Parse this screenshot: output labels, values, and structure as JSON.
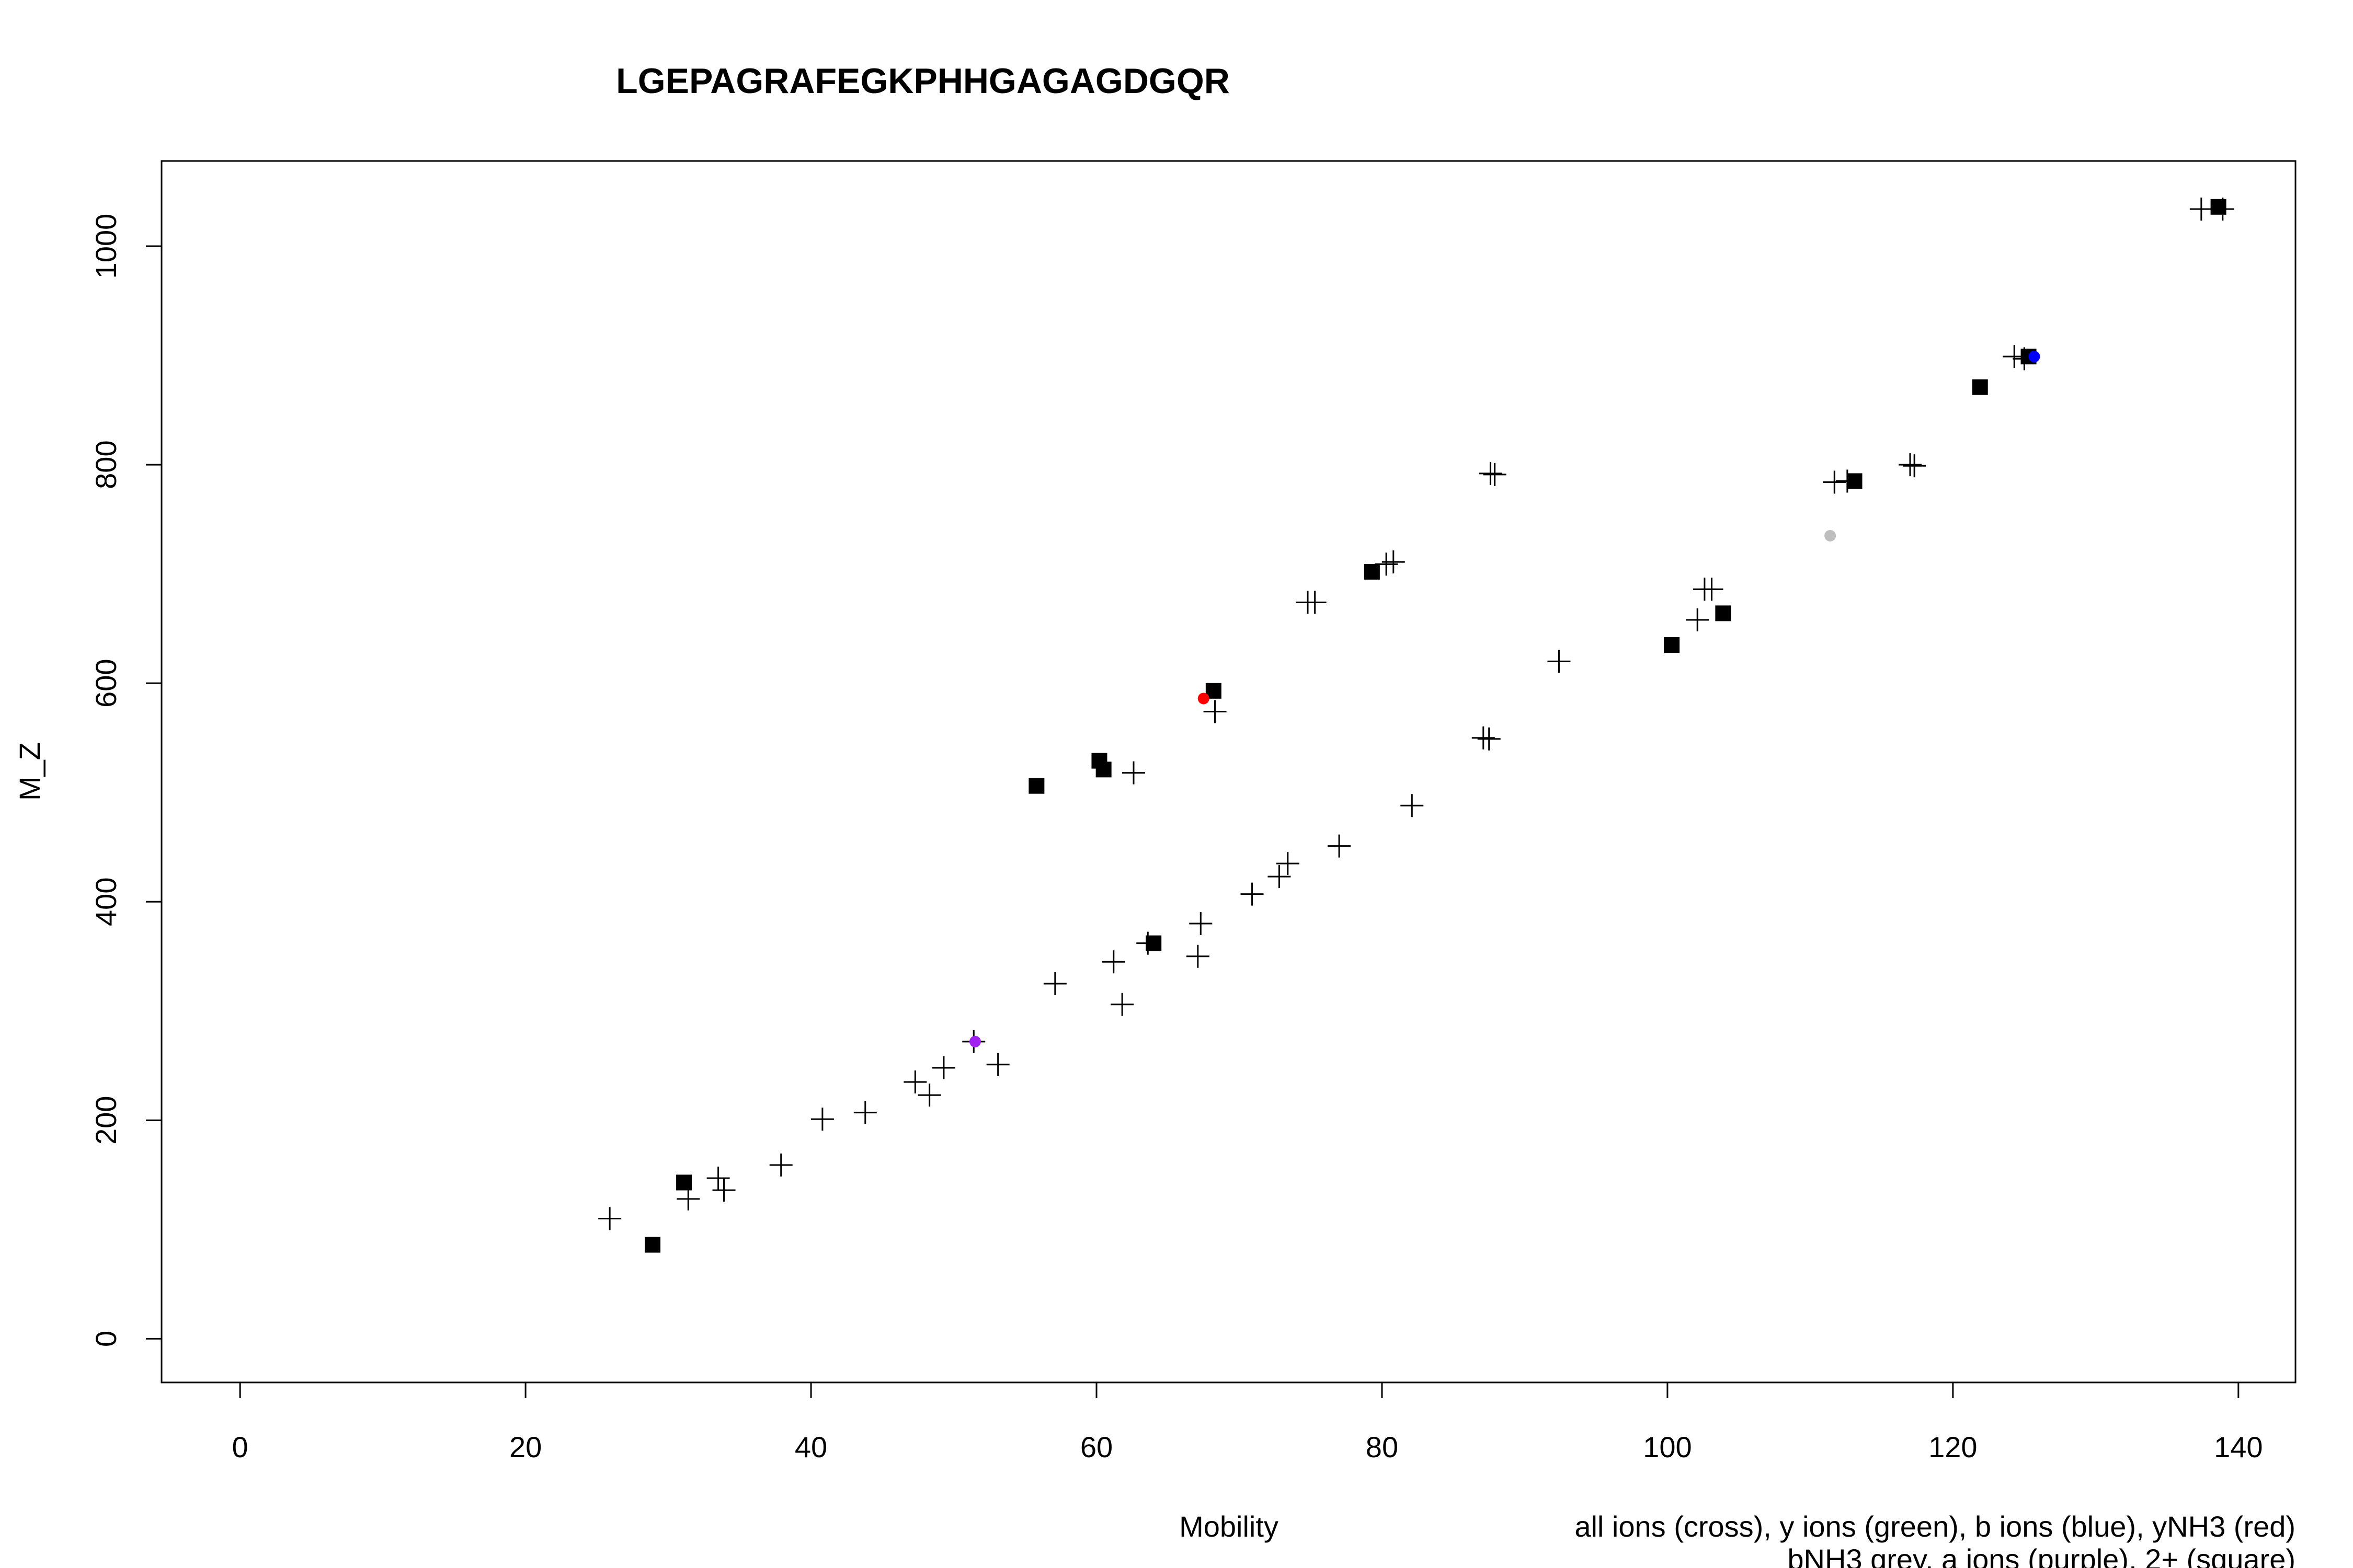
{
  "chart_data": {
    "type": "scatter",
    "title": "LGEPAGRAFEGKPHHGAGAGDGQR",
    "xlabel": "Mobility",
    "ylabel": "M_Z",
    "legend_line1": "all ions (cross), y ions (green), b ions (blue), yNH3 (red)",
    "legend_line2": "bNH3 grey, a ions (purple), 2+ (square)",
    "xlim": [
      -5.5,
      144
    ],
    "ylim": [
      -40,
      1078
    ],
    "x_ticks": [
      0,
      20,
      40,
      60,
      80,
      100,
      120,
      140
    ],
    "y_ticks": [
      0,
      200,
      400,
      600,
      800,
      1000
    ],
    "colors": {
      "all_ions": "#000000",
      "y_ions": "#00a000",
      "b_ions": "#0000ff",
      "yNH3": "#ff0000",
      "bNH3": "#bebebe",
      "a_ions": "#a020f0",
      "doubly_charged": "#000000"
    },
    "all_ions": [
      [
        25.9,
        110
      ],
      [
        31.4,
        128
      ],
      [
        33.5,
        147
      ],
      [
        33.9,
        136
      ],
      [
        37.9,
        159
      ],
      [
        40.8,
        201
      ],
      [
        43.8,
        207
      ],
      [
        47.3,
        235
      ],
      [
        48.3,
        223
      ],
      [
        49.3,
        248
      ],
      [
        51.4,
        272
      ],
      [
        53.1,
        251
      ],
      [
        57.1,
        325
      ],
      [
        61.2,
        345
      ],
      [
        61.8,
        306
      ],
      [
        62.6,
        518
      ],
      [
        63.6,
        362
      ],
      [
        67.1,
        350
      ],
      [
        67.3,
        380
      ],
      [
        68.3,
        574
      ],
      [
        70.9,
        407
      ],
      [
        72.8,
        423
      ],
      [
        73.4,
        435
      ],
      [
        74.8,
        674
      ],
      [
        75.3,
        674
      ],
      [
        77.0,
        451
      ],
      [
        80.3,
        709
      ],
      [
        80.8,
        711
      ],
      [
        82.1,
        488
      ],
      [
        87.1,
        550
      ],
      [
        87.5,
        549
      ],
      [
        87.6,
        792
      ],
      [
        87.9,
        791
      ],
      [
        92.4,
        620
      ],
      [
        102.1,
        658
      ],
      [
        102.6,
        686
      ],
      [
        103.1,
        686
      ],
      [
        111.7,
        784
      ],
      [
        112.6,
        785
      ],
      [
        117.0,
        800
      ],
      [
        117.3,
        799
      ],
      [
        124.3,
        899
      ],
      [
        125.0,
        897
      ],
      [
        137.4,
        1034
      ],
      [
        138.9,
        1034
      ]
    ],
    "doubly_charged": [
      [
        28.9,
        86
      ],
      [
        31.1,
        143
      ],
      [
        55.8,
        506
      ],
      [
        60.2,
        529
      ],
      [
        60.5,
        521
      ],
      [
        64.0,
        362
      ],
      [
        68.2,
        593
      ],
      [
        79.3,
        702
      ],
      [
        100.3,
        635
      ],
      [
        103.9,
        664
      ],
      [
        113.1,
        785
      ],
      [
        121.9,
        871
      ],
      [
        125.3,
        899
      ],
      [
        138.6,
        1036
      ]
    ],
    "b_ions": [
      [
        125.7,
        899
      ]
    ],
    "yNH3": [
      [
        67.5,
        586
      ]
    ],
    "bNH3": [
      [
        111.4,
        735
      ]
    ],
    "a_ions": [
      [
        51.5,
        272
      ]
    ]
  }
}
